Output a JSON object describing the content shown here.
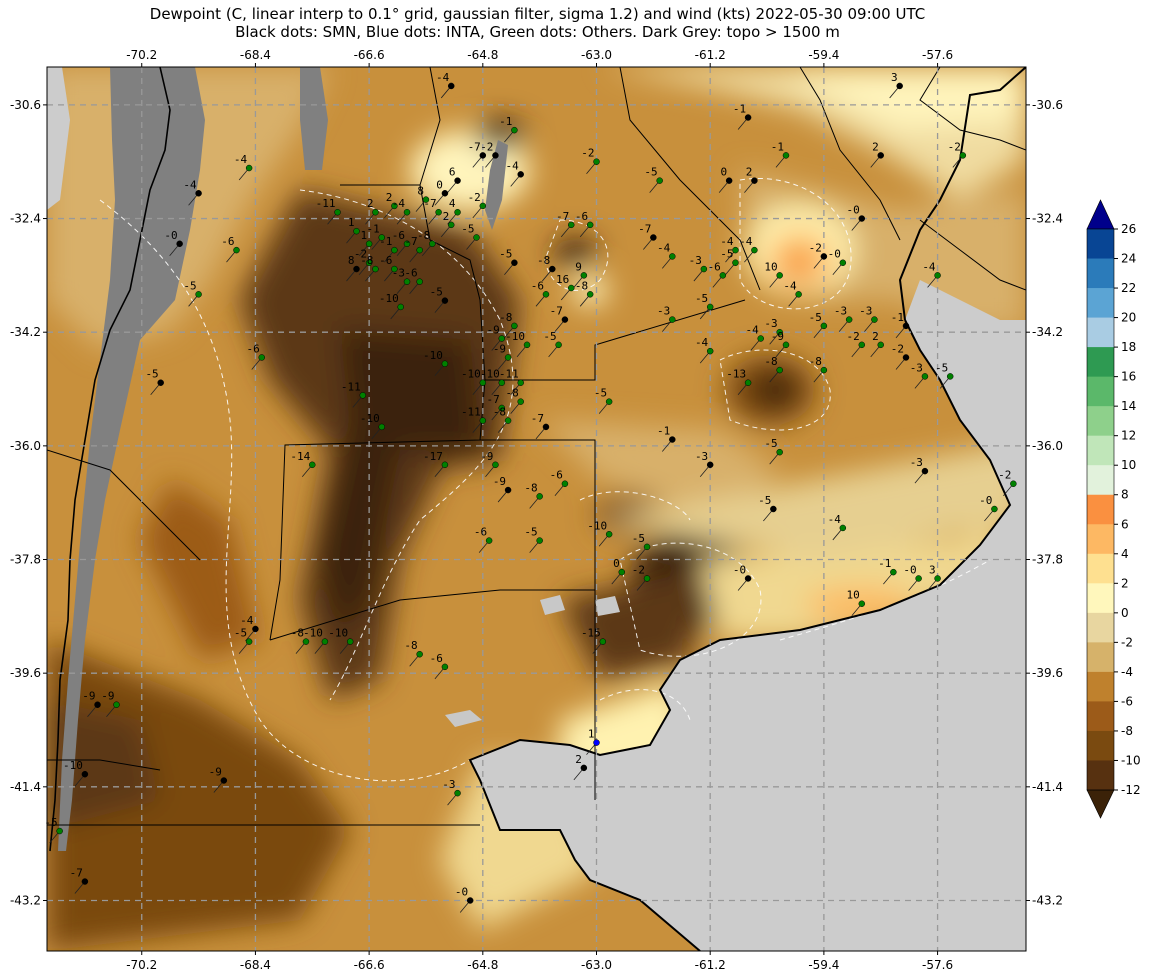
{
  "title": {
    "line1": "Dewpoint (C, linear interp to 0.1° grid, gaussian filter, sigma 1.2) and wind (kts) 2022-05-30 09:00 UTC",
    "line2": "Black dots: SMN, Blue dots: INTA, Green dots: Others. Dark Grey: topo > 1500 m"
  },
  "axes": {
    "lon_ticks": [
      "-70.2",
      "-68.4",
      "-66.6",
      "-64.8",
      "-63.0",
      "-61.2",
      "-59.4",
      "-57.6"
    ],
    "lat_ticks": [
      "-30.6",
      "-32.4",
      "-34.2",
      "-36.0",
      "-37.8",
      "-39.6",
      "-41.4",
      "-43.2"
    ],
    "lon_range": [
      -71.7,
      -56.2
    ],
    "lat_range": [
      -30.0,
      -44.0
    ]
  },
  "colorbar": {
    "ticks": [
      "26",
      "24",
      "22",
      "20",
      "18",
      "16",
      "14",
      "12",
      "10",
      "8",
      "6",
      "4",
      "2",
      "0",
      "-2",
      "-4",
      "-6",
      "-8",
      "-10",
      "-12"
    ],
    "colors": [
      "#084594",
      "#2b7bba",
      "#5ba4d4",
      "#a9cce3",
      "#2e9a52",
      "#5bb86a",
      "#8ed08b",
      "#c0e6b9",
      "#e2f2dc",
      "#fa9040",
      "#fdb863",
      "#fee090",
      "#fff7bc",
      "#e8d6a0",
      "#d6b26a",
      "#bf812d",
      "#9c5b19",
      "#7a4a10",
      "#573110"
    ],
    "over_color": "#00008b",
    "under_color": "#3b2208"
  },
  "stations": [
    {
      "lon": -65.3,
      "lat": -30.3,
      "value": "-4",
      "type": "SMN"
    },
    {
      "lon": -58.2,
      "lat": -30.3,
      "value": "3",
      "type": "SMN"
    },
    {
      "lon": -64.3,
      "lat": -31.0,
      "value": "-1",
      "type": "Others"
    },
    {
      "lon": -60.6,
      "lat": -30.8,
      "value": "-1",
      "type": "SMN"
    },
    {
      "lon": -60.0,
      "lat": -31.4,
      "value": "-1",
      "type": "Others"
    },
    {
      "lon": -58.5,
      "lat": -31.4,
      "value": "2",
      "type": "SMN"
    },
    {
      "lon": -57.2,
      "lat": -31.4,
      "value": "-2",
      "type": "Others"
    },
    {
      "lon": -68.5,
      "lat": -31.6,
      "value": "-4",
      "type": "Others"
    },
    {
      "lon": -64.8,
      "lat": -31.4,
      "value": "-7",
      "type": "SMN"
    },
    {
      "lon": -64.6,
      "lat": -31.4,
      "value": "-2",
      "type": "SMN"
    },
    {
      "lon": -63.0,
      "lat": -31.5,
      "value": "-2",
      "type": "Others"
    },
    {
      "lon": -64.2,
      "lat": -31.7,
      "value": "-4",
      "type": "SMN"
    },
    {
      "lon": -65.2,
      "lat": -31.8,
      "value": "6",
      "type": "SMN"
    },
    {
      "lon": -62.0,
      "lat": -31.8,
      "value": "-5",
      "type": "Others"
    },
    {
      "lon": -60.9,
      "lat": -31.8,
      "value": "0",
      "type": "SMN"
    },
    {
      "lon": -60.5,
      "lat": -31.8,
      "value": "2",
      "type": "SMN"
    },
    {
      "lon": -69.3,
      "lat": -32.0,
      "value": "-4",
      "type": "SMN"
    },
    {
      "lon": -65.4,
      "lat": -32.0,
      "value": "0",
      "type": "SMN"
    },
    {
      "lon": -65.7,
      "lat": -32.1,
      "value": "8",
      "type": "Others"
    },
    {
      "lon": -66.2,
      "lat": -32.2,
      "value": "2",
      "type": "Others"
    },
    {
      "lon": -64.8,
      "lat": -32.2,
      "value": "-2",
      "type": "Others"
    },
    {
      "lon": -67.1,
      "lat": -32.3,
      "value": "-11",
      "type": "Others"
    },
    {
      "lon": -66.5,
      "lat": -32.3,
      "value": "2",
      "type": "Others"
    },
    {
      "lon": -66.0,
      "lat": -32.3,
      "value": "-4",
      "type": "Others"
    },
    {
      "lon": -65.5,
      "lat": -32.3,
      "value": "-7",
      "type": "Others"
    },
    {
      "lon": -65.2,
      "lat": -32.3,
      "value": "4",
      "type": "Others"
    },
    {
      "lon": -58.8,
      "lat": -32.4,
      "value": "-0",
      "type": "SMN"
    },
    {
      "lon": -63.4,
      "lat": -32.5,
      "value": "-7",
      "type": "Others"
    },
    {
      "lon": -63.1,
      "lat": -32.5,
      "value": "-6",
      "type": "Others"
    },
    {
      "lon": -65.3,
      "lat": -32.5,
      "value": "2",
      "type": "Others"
    },
    {
      "lon": -66.8,
      "lat": -32.6,
      "value": "1",
      "type": "Others"
    },
    {
      "lon": -66.4,
      "lat": -32.7,
      "value": "-1",
      "type": "Others"
    },
    {
      "lon": -64.9,
      "lat": -32.7,
      "value": "-5",
      "type": "Others"
    },
    {
      "lon": -62.1,
      "lat": -32.7,
      "value": "-7",
      "type": "SMN"
    },
    {
      "lon": -69.6,
      "lat": -32.8,
      "value": "-0",
      "type": "SMN"
    },
    {
      "lon": -66.6,
      "lat": -32.8,
      "value": "1",
      "type": "Others"
    },
    {
      "lon": -66.0,
      "lat": -32.8,
      "value": "-6",
      "type": "Others"
    },
    {
      "lon": -65.6,
      "lat": -32.8,
      "value": "-8",
      "type": "Others"
    },
    {
      "lon": -60.8,
      "lat": -32.9,
      "value": "-4",
      "type": "Others"
    },
    {
      "lon": -60.5,
      "lat": -32.9,
      "value": "-4",
      "type": "Others"
    },
    {
      "lon": -68.7,
      "lat": -32.9,
      "value": "-6",
      "type": "Others"
    },
    {
      "lon": -66.2,
      "lat": -32.9,
      "value": "-1",
      "type": "Others"
    },
    {
      "lon": -65.8,
      "lat": -32.9,
      "value": "-7",
      "type": "Others"
    },
    {
      "lon": -61.8,
      "lat": -33.0,
      "value": "-4",
      "type": "Others"
    },
    {
      "lon": -66.6,
      "lat": -33.1,
      "value": "-2",
      "type": "Others"
    },
    {
      "lon": -64.3,
      "lat": -33.1,
      "value": "-5",
      "type": "SMN"
    },
    {
      "lon": -60.8,
      "lat": -33.1,
      "value": "-5",
      "type": "Others"
    },
    {
      "lon": -59.1,
      "lat": -33.1,
      "value": "-0",
      "type": "Others"
    },
    {
      "lon": -59.4,
      "lat": -33.0,
      "value": "-2",
      "type": "SMN"
    },
    {
      "lon": -66.5,
      "lat": -33.2,
      "value": "-8",
      "type": "Others"
    },
    {
      "lon": -66.8,
      "lat": -33.2,
      "value": "8",
      "type": "SMN"
    },
    {
      "lon": -66.2,
      "lat": -33.2,
      "value": "-6",
      "type": "Others"
    },
    {
      "lon": -63.7,
      "lat": -33.2,
      "value": "-8",
      "type": "SMN"
    },
    {
      "lon": -63.2,
      "lat": -33.3,
      "value": "9",
      "type": "Others"
    },
    {
      "lon": -61.3,
      "lat": -33.2,
      "value": "-3",
      "type": "Others"
    },
    {
      "lon": -61.0,
      "lat": -33.3,
      "value": "-6",
      "type": "Others"
    },
    {
      "lon": -60.1,
      "lat": -33.3,
      "value": "10",
      "type": "Others"
    },
    {
      "lon": -57.6,
      "lat": -33.3,
      "value": "-4",
      "type": "Others"
    },
    {
      "lon": -66.0,
      "lat": -33.4,
      "value": "-3",
      "type": "Others"
    },
    {
      "lon": -65.8,
      "lat": -33.4,
      "value": "-6",
      "type": "Others"
    },
    {
      "lon": -63.4,
      "lat": -33.5,
      "value": "16",
      "type": "Others"
    },
    {
      "lon": -65.4,
      "lat": -33.7,
      "value": "-5",
      "type": "SMN"
    },
    {
      "lon": -63.8,
      "lat": -33.6,
      "value": "-6",
      "type": "Others"
    },
    {
      "lon": -63.1,
      "lat": -33.6,
      "value": "-8",
      "type": "Others"
    },
    {
      "lon": -69.3,
      "lat": -33.6,
      "value": "-5",
      "type": "Others"
    },
    {
      "lon": -59.8,
      "lat": -33.6,
      "value": "-4",
      "type": "Others"
    },
    {
      "lon": -66.1,
      "lat": -33.8,
      "value": "-10",
      "type": "Others"
    },
    {
      "lon": -61.2,
      "lat": -33.8,
      "value": "-5",
      "type": "Others"
    },
    {
      "lon": -63.5,
      "lat": -34.0,
      "value": "-7",
      "type": "SMN"
    },
    {
      "lon": -61.8,
      "lat": -34.0,
      "value": "-3",
      "type": "Others"
    },
    {
      "lon": -59.0,
      "lat": -34.0,
      "value": "-3",
      "type": "Others"
    },
    {
      "lon": -58.6,
      "lat": -34.0,
      "value": "-3",
      "type": "Others"
    },
    {
      "lon": -58.1,
      "lat": -34.1,
      "value": "-1",
      "type": "SMN"
    },
    {
      "lon": -64.3,
      "lat": -34.1,
      "value": "-8",
      "type": "Others"
    },
    {
      "lon": -60.1,
      "lat": -34.2,
      "value": "-3",
      "type": "Others"
    },
    {
      "lon": -59.4,
      "lat": -34.1,
      "value": "-5",
      "type": "Others"
    },
    {
      "lon": -64.5,
      "lat": -34.3,
      "value": "-9",
      "type": "Others"
    },
    {
      "lon": -60.4,
      "lat": -34.3,
      "value": "-4",
      "type": "Others"
    },
    {
      "lon": -64.1,
      "lat": -34.4,
      "value": "-10",
      "type": "Others"
    },
    {
      "lon": -63.6,
      "lat": -34.4,
      "value": "-5",
      "type": "Others"
    },
    {
      "lon": -60.0,
      "lat": -34.4,
      "value": "-9",
      "type": "Others"
    },
    {
      "lon": -58.8,
      "lat": -34.4,
      "value": "-2",
      "type": "Others"
    },
    {
      "lon": -58.5,
      "lat": -34.4,
      "value": "2",
      "type": "Others"
    },
    {
      "lon": -61.2,
      "lat": -34.5,
      "value": "-4",
      "type": "Others"
    },
    {
      "lon": -64.4,
      "lat": -34.6,
      "value": "-9",
      "type": "Others"
    },
    {
      "lon": -68.3,
      "lat": -34.6,
      "value": "-6",
      "type": "Others"
    },
    {
      "lon": -65.4,
      "lat": -34.7,
      "value": "-10",
      "type": "Others"
    },
    {
      "lon": -58.1,
      "lat": -34.6,
      "value": "-2",
      "type": "SMN"
    },
    {
      "lon": -60.1,
      "lat": -34.8,
      "value": "-8",
      "type": "Others"
    },
    {
      "lon": -59.4,
      "lat": -34.8,
      "value": "-8",
      "type": "Others"
    },
    {
      "lon": -57.8,
      "lat": -34.9,
      "value": "-3",
      "type": "Others"
    },
    {
      "lon": -57.4,
      "lat": -34.9,
      "value": "-5",
      "type": "Others"
    },
    {
      "lon": -69.9,
      "lat": -35.0,
      "value": "-5",
      "type": "SMN"
    },
    {
      "lon": -60.6,
      "lat": -35.0,
      "value": "-13",
      "type": "Others"
    },
    {
      "lon": -64.8,
      "lat": -35.0,
      "value": "-10",
      "type": "Others"
    },
    {
      "lon": -64.5,
      "lat": -35.0,
      "value": "-10",
      "type": "Others"
    },
    {
      "lon": -64.2,
      "lat": -35.0,
      "value": "-11",
      "type": "Others"
    },
    {
      "lon": -66.7,
      "lat": -35.2,
      "value": "-11",
      "type": "Others"
    },
    {
      "lon": -64.2,
      "lat": -35.3,
      "value": "-8",
      "type": "Others"
    },
    {
      "lon": -62.8,
      "lat": -35.3,
      "value": "-5",
      "type": "Others"
    },
    {
      "lon": -64.5,
      "lat": -35.4,
      "value": "-7",
      "type": "Others"
    },
    {
      "lon": -64.8,
      "lat": -35.6,
      "value": "-11",
      "type": "Others"
    },
    {
      "lon": -64.4,
      "lat": -35.6,
      "value": "-8",
      "type": "Others"
    },
    {
      "lon": -63.8,
      "lat": -35.7,
      "value": "-7",
      "type": "SMN"
    },
    {
      "lon": -66.4,
      "lat": -35.7,
      "value": "-10",
      "type": "Others"
    },
    {
      "lon": -61.8,
      "lat": -35.9,
      "value": "-1",
      "type": "SMN"
    },
    {
      "lon": -67.5,
      "lat": -36.3,
      "value": "-14",
      "type": "Others"
    },
    {
      "lon": -65.4,
      "lat": -36.3,
      "value": "-17",
      "type": "Others"
    },
    {
      "lon": -64.6,
      "lat": -36.3,
      "value": "-9",
      "type": "Others"
    },
    {
      "lon": -61.2,
      "lat": -36.3,
      "value": "-3",
      "type": "SMN"
    },
    {
      "lon": -60.1,
      "lat": -36.1,
      "value": "-5",
      "type": "Others"
    },
    {
      "lon": -57.8,
      "lat": -36.4,
      "value": "-3",
      "type": "SMN"
    },
    {
      "lon": -56.4,
      "lat": -36.6,
      "value": "-2",
      "type": "Others"
    },
    {
      "lon": -64.4,
      "lat": -36.7,
      "value": "-9",
      "type": "SMN"
    },
    {
      "lon": -63.9,
      "lat": -36.8,
      "value": "-8",
      "type": "Others"
    },
    {
      "lon": -63.5,
      "lat": -36.6,
      "value": "-6",
      "type": "Others"
    },
    {
      "lon": -60.2,
      "lat": -37.0,
      "value": "-5",
      "type": "SMN"
    },
    {
      "lon": -56.7,
      "lat": -37.0,
      "value": "-0",
      "type": "Others"
    },
    {
      "lon": -62.8,
      "lat": -37.4,
      "value": "-10",
      "type": "Others"
    },
    {
      "lon": -59.1,
      "lat": -37.3,
      "value": "-4",
      "type": "Others"
    },
    {
      "lon": -64.7,
      "lat": -37.5,
      "value": "-6",
      "type": "Others"
    },
    {
      "lon": -63.9,
      "lat": -37.5,
      "value": "-5",
      "type": "Others"
    },
    {
      "lon": -62.2,
      "lat": -37.6,
      "value": "-5",
      "type": "Others"
    },
    {
      "lon": -62.6,
      "lat": -38.0,
      "value": "0",
      "type": "Others"
    },
    {
      "lon": -62.2,
      "lat": -38.1,
      "value": "-2",
      "type": "Others"
    },
    {
      "lon": -60.6,
      "lat": -38.1,
      "value": "-0",
      "type": "SMN"
    },
    {
      "lon": -58.3,
      "lat": -38.0,
      "value": "-1",
      "type": "Others"
    },
    {
      "lon": -57.9,
      "lat": -38.1,
      "value": "-0",
      "type": "Others"
    },
    {
      "lon": -57.6,
      "lat": -38.1,
      "value": "3",
      "type": "Others"
    },
    {
      "lon": -58.8,
      "lat": -38.5,
      "value": "10",
      "type": "Others"
    },
    {
      "lon": -68.4,
      "lat": -38.9,
      "value": "-4",
      "type": "SMN"
    },
    {
      "lon": -68.5,
      "lat": -39.1,
      "value": "-5",
      "type": "Others"
    },
    {
      "lon": -67.6,
      "lat": -39.1,
      "value": "-8",
      "type": "Others"
    },
    {
      "lon": -67.3,
      "lat": -39.1,
      "value": "-10",
      "type": "Others"
    },
    {
      "lon": -66.9,
      "lat": -39.1,
      "value": "-10",
      "type": "Others"
    },
    {
      "lon": -62.9,
      "lat": -39.1,
      "value": "-15",
      "type": "Others"
    },
    {
      "lon": -65.8,
      "lat": -39.3,
      "value": "-8",
      "type": "Others"
    },
    {
      "lon": -65.4,
      "lat": -39.5,
      "value": "-6",
      "type": "Others"
    },
    {
      "lon": -70.9,
      "lat": -40.1,
      "value": "-9",
      "type": "SMN"
    },
    {
      "lon": -70.6,
      "lat": -40.1,
      "value": "-9",
      "type": "Others"
    },
    {
      "lon": -63.0,
      "lat": -40.7,
      "value": "1",
      "type": "INTA"
    },
    {
      "lon": -63.2,
      "lat": -41.1,
      "value": "2",
      "type": "SMN"
    },
    {
      "lon": -71.1,
      "lat": -41.2,
      "value": "-10",
      "type": "SMN"
    },
    {
      "lon": -68.9,
      "lat": -41.3,
      "value": "-9",
      "type": "SMN"
    },
    {
      "lon": -65.2,
      "lat": -41.5,
      "value": "-3",
      "type": "Others"
    },
    {
      "lon": -71.5,
      "lat": -42.1,
      "value": "-5",
      "type": "Others"
    },
    {
      "lon": -71.1,
      "lat": -42.9,
      "value": "-7",
      "type": "SMN"
    },
    {
      "lon": -65.0,
      "lat": -43.2,
      "value": "-0",
      "type": "SMN"
    }
  ]
}
